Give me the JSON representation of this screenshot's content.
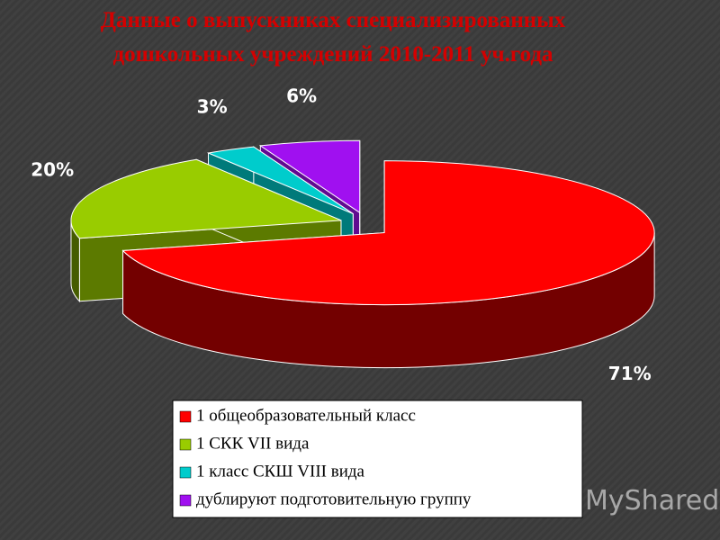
{
  "chart_data": {
    "type": "pie",
    "title": "Данные о выпускниках специализированных дошкольных учреждений 2010-2011 уч.года",
    "categories": [
      "1 общеобразовательный класс",
      "1 СКК VII вида",
      "1 класс СКШ VIII вида",
      "дублируют подготовительную группу"
    ],
    "values": [
      71,
      20,
      3,
      6
    ],
    "value_labels": [
      "71%",
      "20%",
      "3%",
      "6%"
    ],
    "colors": [
      "#ff0000",
      "#99cc00",
      "#00cccc",
      "#a010f0"
    ],
    "legend": "bottom",
    "watermark": "MyShared"
  }
}
